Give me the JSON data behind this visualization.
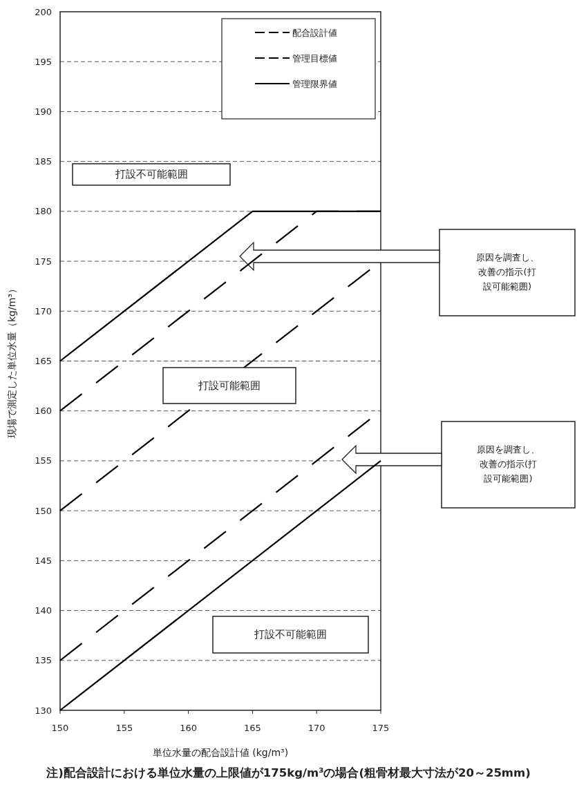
{
  "chart_data": {
    "type": "line",
    "xlabel": "単位水量の配合設計値 (kg/m³)",
    "ylabel": "現場で測定した単位水量（kg/m³）",
    "xlim": [
      150,
      175
    ],
    "ylim": [
      130,
      200
    ],
    "xticks": [
      150,
      155,
      160,
      165,
      170,
      175
    ],
    "yticks": [
      130,
      135,
      140,
      145,
      150,
      155,
      160,
      165,
      170,
      175,
      180,
      185,
      190,
      195,
      200
    ],
    "grid": "y",
    "legend": "top right",
    "marker": "none",
    "series": [
      {
        "name": "配合設計値",
        "color": "#000000",
        "line_style": "dashed",
        "x": [
          150,
          175
        ],
        "values": [
          150,
          175
        ]
      },
      {
        "name": "管理目標値",
        "color": "#000000",
        "line_style": "dashed",
        "x": [
          150,
          170,
          175
        ],
        "values": [
          160,
          180,
          180
        ]
      },
      {
        "color": "#000000",
        "line_style": "dashed",
        "x": [
          150,
          175
        ],
        "values": [
          135,
          160
        ]
      },
      {
        "name": "管理限界値",
        "color": "#000000",
        "line_style": "solid",
        "x": [
          150,
          165,
          175
        ],
        "values": [
          165,
          180,
          180
        ]
      },
      {
        "color": "#000000",
        "line_style": "solid",
        "x": [
          150,
          175
        ],
        "values": [
          130,
          155
        ]
      }
    ],
    "annotations": [
      "打設不可能範囲",
      "打設可能範囲",
      "打設不可能範囲",
      "原因を調査し、改善の指示(打設可能範囲)",
      "原因を調査し、改善の指示(打設可能範囲)",
      "注)配合設計における単位水量の上限値が175kg/m³の場合(粗骨材最大寸法が20～25mm)"
    ]
  }
}
